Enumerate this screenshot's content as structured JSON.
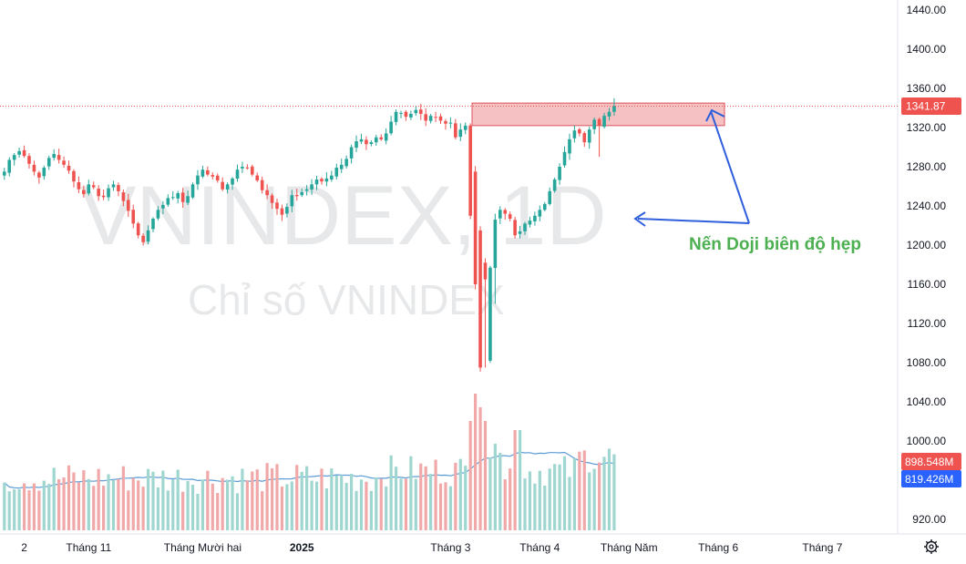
{
  "chart_data": {
    "type": "candlestick",
    "watermark_symbol": "VNINDEX, 1D",
    "watermark_name": "Chỉ số VNINDEX",
    "price_ticks": [
      1440,
      1400,
      1360,
      1320,
      1280,
      1240,
      1200,
      1160,
      1120,
      1080,
      1040,
      1000,
      920
    ],
    "price_tick_labels": [
      "1440.00",
      "1400.00",
      "1360.00",
      "1320.00",
      "1280.00",
      "1240.00",
      "1200.00",
      "1160.00",
      "1120.00",
      "1080.00",
      "1040.00",
      "1000.00",
      "920.00"
    ],
    "x_labels": [
      {
        "label": "2",
        "bar": 4
      },
      {
        "label": "Tháng 11",
        "bar": 17,
        "bold": false
      },
      {
        "label": "Tháng Mười hai",
        "bar": 40,
        "bold": false
      },
      {
        "label": "2025",
        "bar": 60,
        "bold": true
      },
      {
        "label": "Tháng 3",
        "bar": 90,
        "bold": false
      },
      {
        "label": "Tháng 4",
        "bar": 108,
        "bold": false
      },
      {
        "label": "Tháng Năm",
        "bar": 126,
        "bold": false
      },
      {
        "label": "Tháng 6",
        "bar": 144,
        "bold": false
      },
      {
        "label": "Tháng 7",
        "bar": 165,
        "bold": false
      }
    ],
    "closes": [
      1275,
      1287,
      1292,
      1296,
      1291,
      1283,
      1275,
      1269,
      1279,
      1289,
      1293,
      1287,
      1282,
      1276,
      1265,
      1257,
      1252,
      1262,
      1259,
      1250,
      1249,
      1258,
      1262,
      1255,
      1245,
      1235,
      1222,
      1210,
      1203,
      1215,
      1227,
      1236,
      1241,
      1248,
      1249,
      1253,
      1244,
      1250,
      1262,
      1271,
      1277,
      1272,
      1270,
      1266,
      1257,
      1262,
      1268,
      1277,
      1280,
      1279,
      1272,
      1266,
      1256,
      1251,
      1243,
      1237,
      1231,
      1239,
      1251,
      1250,
      1254,
      1257,
      1262,
      1267,
      1265,
      1268,
      1271,
      1279,
      1282,
      1288,
      1300,
      1306,
      1308,
      1303,
      1305,
      1310,
      1308,
      1314,
      1326,
      1336,
      1335,
      1331,
      1334,
      1338,
      1334,
      1327,
      1332,
      1330,
      1327,
      1324,
      1325,
      1310,
      1318,
      1322,
      1230,
      1160,
      1075,
      1165,
      1177,
      1226,
      1236,
      1232,
      1227,
      1210,
      1214,
      1222,
      1225,
      1230,
      1236,
      1242,
      1255,
      1267,
      1280,
      1295,
      1308,
      1317,
      1314,
      1305,
      1318,
      1328,
      1322,
      1332,
      1336,
      1342
    ],
    "recent_opens": {
      "95": 1275,
      "96": 1215,
      "97": 1182,
      "98": 1082
    },
    "rect_top": 1345,
    "rect_bottom": 1322,
    "current_price": 1341.87,
    "current_price_label": "1341.87",
    "volume_ma_label": "898.548M",
    "volume_sma_label": "819.426M",
    "annotation": "Nến Doji biên độ hẹp",
    "colors": {
      "up": "#26a69a",
      "down": "#ef5350",
      "up_volume": "#9fd6d0",
      "down_volume": "#f0a8a8",
      "ma_line": "#5b9bd5",
      "rect_fill": "#f4b6b8",
      "rect_stroke": "#e0505a",
      "arrow": "#2f5fdc",
      "annotation": "#4caf50",
      "price_badge": "#ef5350",
      "sma_badge": "#2962ff"
    }
  },
  "ui": {
    "settings_icon": "gear-icon"
  }
}
